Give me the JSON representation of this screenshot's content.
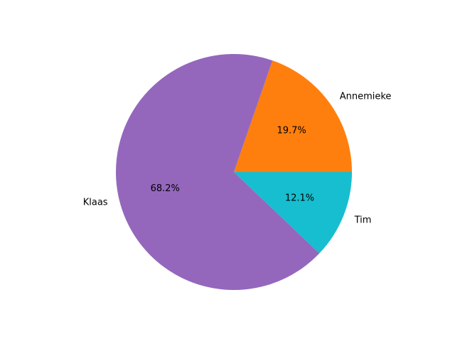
{
  "chart_data": {
    "type": "pie",
    "labels": [
      "Annemieke",
      "Klaas",
      "Tim"
    ],
    "values": [
      19.7,
      68.2,
      12.1
    ],
    "percent_labels": [
      "19.7%",
      "68.2%",
      "12.1%"
    ],
    "colors": [
      "#ff7f0e",
      "#9467bd",
      "#17becf"
    ],
    "start_angle_deg": 0,
    "direction": "counterclockwise",
    "legend": "none"
  }
}
